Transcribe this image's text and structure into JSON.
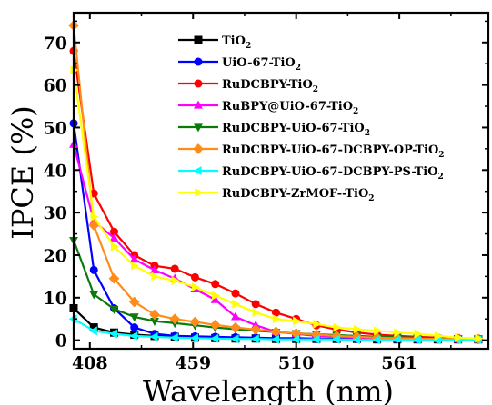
{
  "chart_data": {
    "type": "line",
    "xlabel": "Wavelength (nm)",
    "ylabel": "IPCE (%)",
    "xlim": [
      400,
      605
    ],
    "ylim": [
      -2,
      77
    ],
    "xticks": [
      408,
      459,
      510,
      561
    ],
    "yticks": [
      0,
      10,
      20,
      30,
      40,
      50,
      60,
      70
    ],
    "legend_position": "top-right",
    "x": [
      400,
      410,
      420,
      430,
      440,
      450,
      460,
      470,
      480,
      490,
      500,
      510,
      520,
      530,
      540,
      550,
      560,
      570,
      580,
      590,
      600
    ],
    "series": [
      {
        "name_main": "TiO",
        "name_sub": "2",
        "name_tail": "",
        "color": "#000000",
        "marker": "square",
        "values": [
          7.5,
          3.0,
          1.8,
          1.3,
          1.0,
          0.8,
          0.6,
          0.5,
          0.4,
          0.4,
          0.3,
          0.3,
          0.3,
          0.3,
          0.3,
          0.2,
          0.2,
          0.2,
          0.2,
          0.2,
          0.2
        ]
      },
      {
        "name_main": "UiO-67-TiO",
        "name_sub": "2",
        "name_tail": "",
        "color": "#0000ff",
        "marker": "circle",
        "values": [
          51.0,
          16.5,
          7.5,
          3.0,
          1.5,
          1.0,
          0.9,
          0.8,
          0.7,
          0.6,
          0.5,
          0.5,
          0.4,
          0.4,
          0.3,
          0.3,
          0.3,
          0.2,
          0.2,
          0.2,
          0.2
        ]
      },
      {
        "name_main": "RuDCBPY-TiO",
        "name_sub": "2",
        "name_tail": "",
        "color": "#ff0000",
        "marker": "circle",
        "values": [
          68.0,
          34.5,
          25.5,
          20.0,
          17.5,
          16.8,
          14.8,
          13.2,
          11.0,
          8.5,
          6.5,
          5.0,
          3.5,
          2.5,
          1.8,
          1.3,
          1.0,
          0.8,
          0.6,
          0.5,
          0.4
        ]
      },
      {
        "name_main": "RuBPY@UiO-67-TiO",
        "name_sub": "2",
        "name_tail": "",
        "color": "#ff00ff",
        "marker": "triangle-up",
        "values": [
          46.0,
          28.0,
          24.0,
          19.0,
          16.5,
          14.5,
          12.0,
          9.5,
          5.5,
          3.5,
          2.0,
          1.5,
          1.0,
          0.8,
          0.6,
          0.5,
          0.4,
          0.3,
          0.3,
          0.2,
          0.2
        ]
      },
      {
        "name_main": "RuDCBPY-UiO-67-TiO",
        "name_sub": "2",
        "name_tail": "",
        "color": "#0a7a0a",
        "marker": "triangle-down",
        "values": [
          23.5,
          10.8,
          7.3,
          5.5,
          4.5,
          4.0,
          3.5,
          3.0,
          2.6,
          2.2,
          1.9,
          1.6,
          1.4,
          1.2,
          1.0,
          0.8,
          0.7,
          0.6,
          0.5,
          0.4,
          0.3
        ]
      },
      {
        "name_main": "RuDCBPY-UiO-67-DCBPY-OP-TiO",
        "name_sub": "2",
        "name_tail": "",
        "color": "#ff8c1a",
        "marker": "diamond",
        "values": [
          74.0,
          27.0,
          14.5,
          9.0,
          6.0,
          5.0,
          4.3,
          3.6,
          3.0,
          2.5,
          2.0,
          1.6,
          1.3,
          1.0,
          0.8,
          0.6,
          0.5,
          0.4,
          0.3,
          0.3,
          0.2
        ]
      },
      {
        "name_main": "RuDCBPY-UiO-67-DCBPY-PS-TiO",
        "name_sub": "2",
        "name_tail": "",
        "color": "#00ffff",
        "marker": "triangle-left",
        "values": [
          5.0,
          2.2,
          1.5,
          1.0,
          0.8,
          0.6,
          0.5,
          0.4,
          0.3,
          0.3,
          0.2,
          0.2,
          0.2,
          0.2,
          0.1,
          0.1,
          0.1,
          0.1,
          0.1,
          0.1,
          0.1
        ]
      },
      {
        "name_main": "RuDCBPY-ZrMOF--TiO",
        "name_sub": "2",
        "name_tail": "",
        "color": "#ffff00",
        "marker": "triangle-right",
        "values": [
          63.5,
          29.0,
          22.0,
          17.5,
          15.0,
          14.0,
          12.5,
          10.5,
          8.5,
          6.5,
          5.0,
          4.5,
          3.8,
          3.0,
          2.6,
          2.2,
          1.8,
          1.5,
          1.0,
          0.6,
          0.4
        ]
      }
    ]
  }
}
